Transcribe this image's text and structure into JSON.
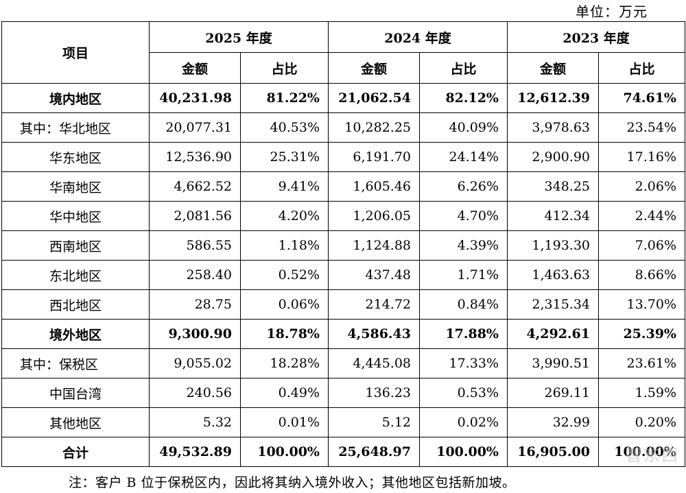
{
  "unit_label": "单位：万元",
  "header": {
    "item_label": "项目",
    "years": [
      "2025 年度",
      "2024 年度",
      "2023 年度"
    ],
    "amount_label": "金额",
    "ratio_label": "占比"
  },
  "rows": [
    {
      "name": "境内地区",
      "bold": true,
      "align": "center",
      "v": [
        "40,231.98",
        "81.22%",
        "21,062.54",
        "82.12%",
        "12,612.39",
        "74.61%"
      ]
    },
    {
      "name": "其中：华北地区",
      "bold": false,
      "align": "left",
      "v": [
        "20,077.31",
        "40.53%",
        "10,282.25",
        "40.09%",
        "3,978.63",
        "23.54%"
      ]
    },
    {
      "name": "华东地区",
      "bold": false,
      "align": "center",
      "v": [
        "12,536.90",
        "25.31%",
        "6,191.70",
        "24.14%",
        "2,900.90",
        "17.16%"
      ]
    },
    {
      "name": "华南地区",
      "bold": false,
      "align": "center",
      "v": [
        "4,662.52",
        "9.41%",
        "1,605.46",
        "6.26%",
        "348.25",
        "2.06%"
      ]
    },
    {
      "name": "华中地区",
      "bold": false,
      "align": "center",
      "v": [
        "2,081.56",
        "4.20%",
        "1,206.05",
        "4.70%",
        "412.34",
        "2.44%"
      ]
    },
    {
      "name": "西南地区",
      "bold": false,
      "align": "center",
      "v": [
        "586.55",
        "1.18%",
        "1,124.88",
        "4.39%",
        "1,193.30",
        "7.06%"
      ]
    },
    {
      "name": "东北地区",
      "bold": false,
      "align": "center",
      "v": [
        "258.40",
        "0.52%",
        "437.48",
        "1.71%",
        "1,463.63",
        "8.66%"
      ]
    },
    {
      "name": "西北地区",
      "bold": false,
      "align": "center",
      "v": [
        "28.75",
        "0.06%",
        "214.72",
        "0.84%",
        "2,315.34",
        "13.70%"
      ]
    },
    {
      "name": "境外地区",
      "bold": true,
      "align": "center",
      "v": [
        "9,300.90",
        "18.78%",
        "4,586.43",
        "17.88%",
        "4,292.61",
        "25.39%"
      ]
    },
    {
      "name": "其中：保税区",
      "bold": false,
      "align": "left",
      "v": [
        "9,055.02",
        "18.28%",
        "4,445.08",
        "17.33%",
        "3,990.51",
        "23.61%"
      ]
    },
    {
      "name": "中国台湾",
      "bold": false,
      "align": "center",
      "v": [
        "240.56",
        "0.49%",
        "136.23",
        "0.53%",
        "269.11",
        "1.59%"
      ]
    },
    {
      "name": "其他地区",
      "bold": false,
      "align": "center",
      "v": [
        "5.32",
        "0.01%",
        "5.12",
        "0.02%",
        "32.99",
        "0.20%"
      ]
    },
    {
      "name": "合计",
      "bold": true,
      "align": "center",
      "v": [
        "49,532.89",
        "100.00%",
        "25,648.97",
        "100.00%",
        "16,905.00",
        "100.00%"
      ]
    }
  ],
  "note": "注：客户 B 位于保税区内，因此将其纳入境外收入；其他地区包括新加坡。",
  "watermark_text": "智东西"
}
